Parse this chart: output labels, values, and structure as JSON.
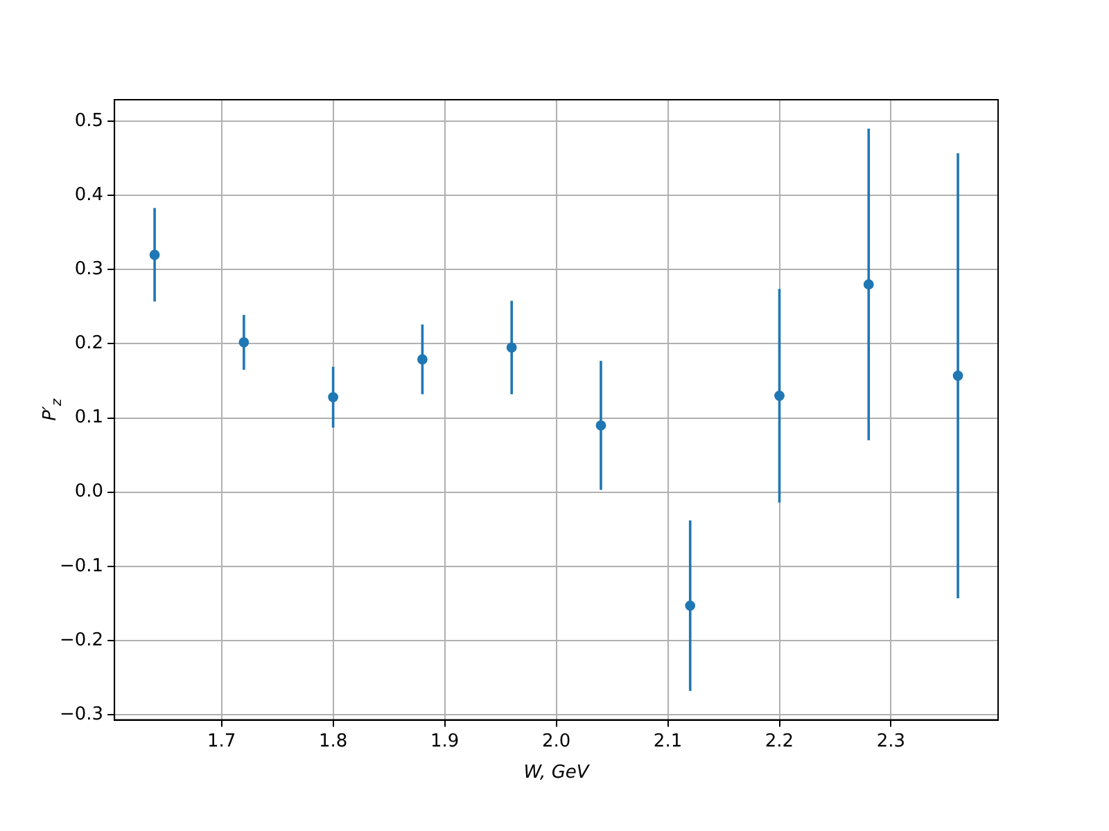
{
  "chart_data": {
    "type": "scatter",
    "xlabel": "W, GeV",
    "ylabel": "P′$_{z}$",
    "x": [
      1.64,
      1.72,
      1.8,
      1.88,
      1.96,
      2.04,
      2.12,
      2.2,
      2.28,
      2.36
    ],
    "series": [
      {
        "color": "#1f77b4",
        "values": [
          0.32,
          0.202,
          0.128,
          0.179,
          0.195,
          0.09,
          -0.153,
          0.13,
          0.28,
          0.157
        ],
        "errors": [
          0.063,
          0.037,
          0.041,
          0.047,
          0.063,
          0.087,
          0.115,
          0.144,
          0.21,
          0.3
        ]
      }
    ],
    "xlim": [
      1.604,
      2.396
    ],
    "xticks": [
      1.7,
      1.8,
      1.9,
      {
        "value": 2.0,
        "label": "2.0"
      },
      2.1,
      2.2,
      2.3
    ],
    "ylim": [
      -0.307,
      0.529
    ],
    "yticks": [
      {
        "value": -0.3,
        "label": "−0.3"
      },
      {
        "value": -0.2,
        "label": "−0.2"
      },
      {
        "value": -0.1,
        "label": "−0.1"
      },
      {
        "value": 0,
        "label": "0.0"
      },
      0.1,
      0.2,
      0.3,
      0.4,
      0.5
    ],
    "grid": true,
    "marker": "circle",
    "legend": false
  }
}
